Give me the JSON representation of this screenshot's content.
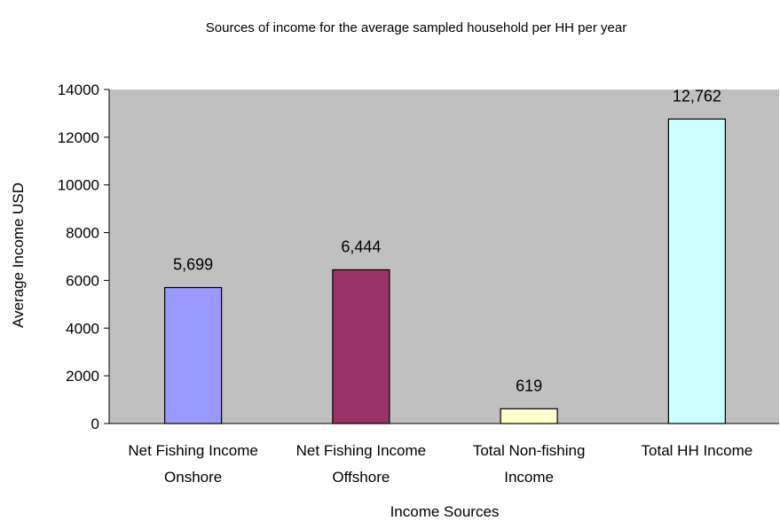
{
  "chart_data": {
    "type": "bar",
    "title": "Sources of income for the average sampled household per HH per year",
    "xlabel": "Income Sources",
    "ylabel": "Average Income USD",
    "ylim": [
      0,
      14000
    ],
    "yticks": [
      0,
      2000,
      4000,
      6000,
      8000,
      10000,
      12000,
      14000
    ],
    "categories": [
      [
        "Net Fishing Income",
        "Onshore"
      ],
      [
        "Net Fishing Income",
        "Offshore"
      ],
      [
        "Total Non-fishing",
        "Income"
      ],
      [
        "Total HH Income"
      ]
    ],
    "values": [
      5699,
      6444,
      619,
      12762
    ],
    "data_labels": [
      "5,699",
      "6,444",
      "619",
      "12,762"
    ],
    "colors": [
      "#9999ff",
      "#993366",
      "#ffffcc",
      "#ccffff"
    ],
    "plot_background": "#c0c0c0",
    "grid": false,
    "legend": "none"
  }
}
